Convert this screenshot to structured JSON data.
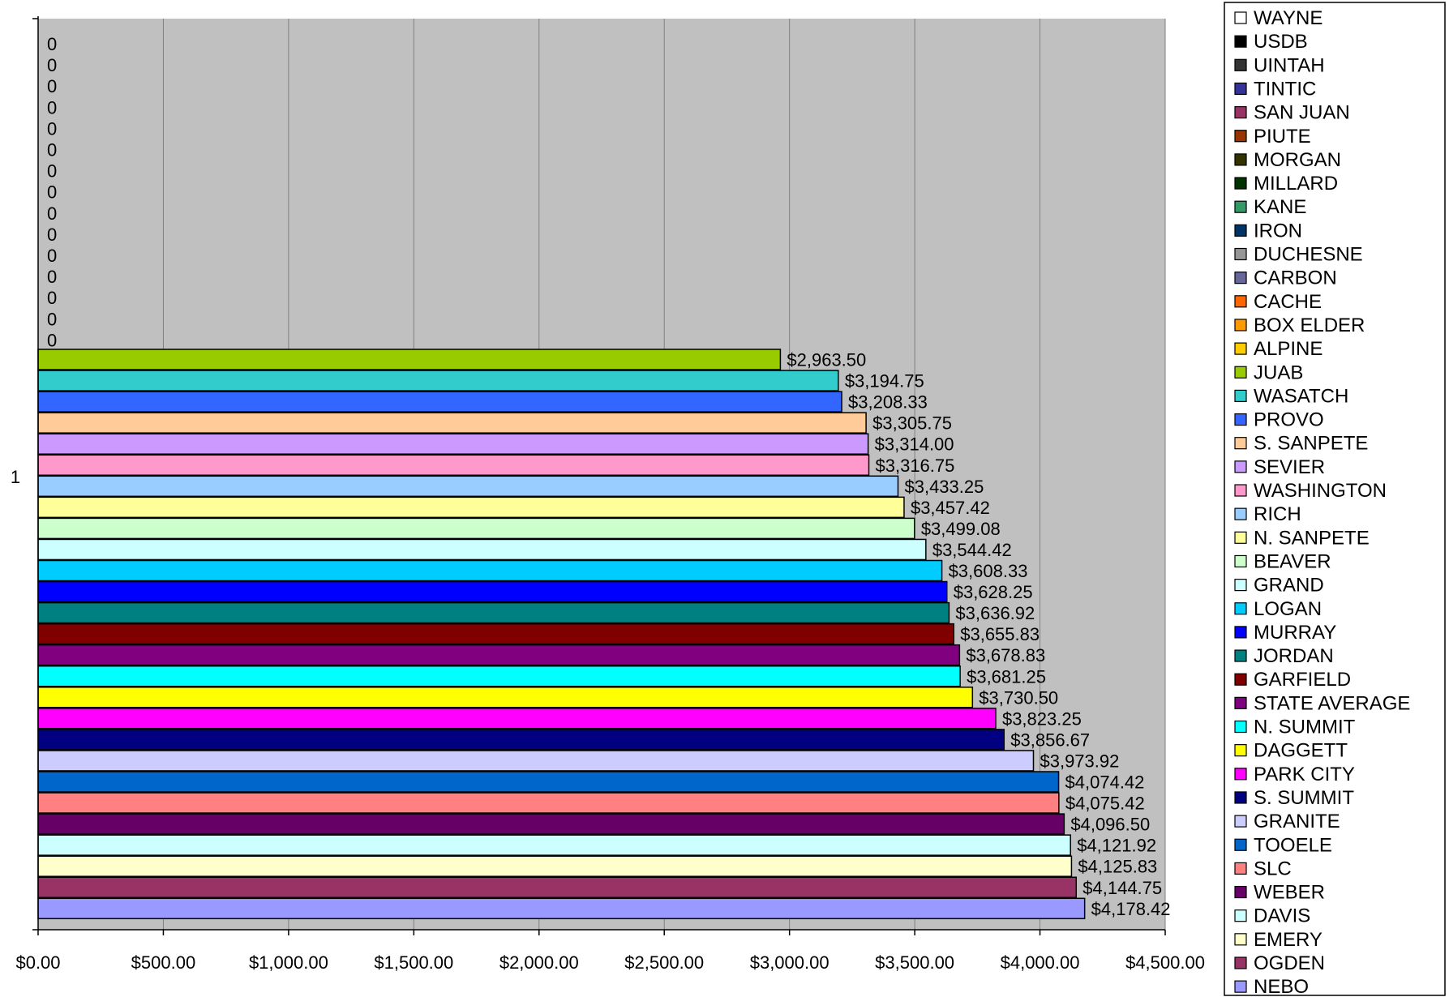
{
  "chart_data": {
    "type": "bar",
    "orientation": "horizontal",
    "title": "",
    "xlabel": "",
    "ylabel": "",
    "xlim": [
      0,
      4500
    ],
    "x_ticks": [
      "$0.00",
      "$500.00",
      "$1,000.00",
      "$1,500.00",
      "$2,000.00",
      "$2,500.00",
      "$3,000.00",
      "$3,500.00",
      "$4,000.00",
      "$4,500.00"
    ],
    "y_category_label": "1",
    "grid": true,
    "legend_position": "right",
    "series": [
      {
        "name": "WAYNE",
        "value": 0,
        "label": "0",
        "color": "#ffffff"
      },
      {
        "name": "USDB",
        "value": 0,
        "label": "0",
        "color": "#000000"
      },
      {
        "name": "UINTAH",
        "value": 0,
        "label": "0",
        "color": "#333333"
      },
      {
        "name": "TINTIC",
        "value": 0,
        "label": "0",
        "color": "#333399"
      },
      {
        "name": "SAN JUAN",
        "value": 0,
        "label": "0",
        "color": "#993366"
      },
      {
        "name": "PIUTE",
        "value": 0,
        "label": "0",
        "color": "#993300"
      },
      {
        "name": "MORGAN",
        "value": 0,
        "label": "0",
        "color": "#333300"
      },
      {
        "name": "MILLARD",
        "value": 0,
        "label": "0",
        "color": "#003300"
      },
      {
        "name": "KANE",
        "value": 0,
        "label": "0",
        "color": "#339966"
      },
      {
        "name": "IRON",
        "value": 0,
        "label": "0",
        "color": "#003366"
      },
      {
        "name": "DUCHESNE",
        "value": 0,
        "label": "0",
        "color": "#969696"
      },
      {
        "name": "CARBON",
        "value": 0,
        "label": "0",
        "color": "#666699"
      },
      {
        "name": "CACHE",
        "value": 0,
        "label": "0",
        "color": "#ff6600"
      },
      {
        "name": "BOX ELDER",
        "value": 0,
        "label": "0",
        "color": "#ff9900"
      },
      {
        "name": "ALPINE",
        "value": 0,
        "label": "0",
        "color": "#ffcc00"
      },
      {
        "name": "JUAB",
        "value": 2963.5,
        "label": "$2,963.50",
        "color": "#99cc00"
      },
      {
        "name": "WASATCH",
        "value": 3194.75,
        "label": "$3,194.75",
        "color": "#33cccc"
      },
      {
        "name": "PROVO",
        "value": 3208.33,
        "label": "$3,208.33",
        "color": "#3366ff"
      },
      {
        "name": "S. SANPETE",
        "value": 3305.75,
        "label": "$3,305.75",
        "color": "#ffcc99"
      },
      {
        "name": "SEVIER",
        "value": 3314.0,
        "label": "$3,314.00",
        "color": "#cc99ff"
      },
      {
        "name": "WASHINGTON",
        "value": 3316.75,
        "label": "$3,316.75",
        "color": "#ff99cc"
      },
      {
        "name": "RICH",
        "value": 3433.25,
        "label": "$3,433.25",
        "color": "#99ccff"
      },
      {
        "name": "N. SANPETE",
        "value": 3457.42,
        "label": "$3,457.42",
        "color": "#ffff99"
      },
      {
        "name": "BEAVER",
        "value": 3499.08,
        "label": "$3,499.08",
        "color": "#ccffcc"
      },
      {
        "name": "GRAND",
        "value": 3544.42,
        "label": "$3,544.42",
        "color": "#ccffff"
      },
      {
        "name": "LOGAN",
        "value": 3608.33,
        "label": "$3,608.33",
        "color": "#00ccff"
      },
      {
        "name": "MURRAY",
        "value": 3628.25,
        "label": "$3,628.25",
        "color": "#0000ff"
      },
      {
        "name": "JORDAN",
        "value": 3636.92,
        "label": "$3,636.92",
        "color": "#008080"
      },
      {
        "name": "GARFIELD",
        "value": 3655.83,
        "label": "$3,655.83",
        "color": "#800000"
      },
      {
        "name": "STATE AVERAGE",
        "value": 3678.83,
        "label": "$3,678.83",
        "color": "#800080"
      },
      {
        "name": "N. SUMMIT",
        "value": 3681.25,
        "label": "$3,681.25",
        "color": "#00ffff"
      },
      {
        "name": "DAGGETT",
        "value": 3730.5,
        "label": "$3,730.50",
        "color": "#ffff00"
      },
      {
        "name": "PARK CITY",
        "value": 3823.25,
        "label": "$3,823.25",
        "color": "#ff00ff"
      },
      {
        "name": "S. SUMMIT",
        "value": 3856.67,
        "label": "$3,856.67",
        "color": "#000080"
      },
      {
        "name": "GRANITE",
        "value": 3973.92,
        "label": "$3,973.92",
        "color": "#ccccff"
      },
      {
        "name": "TOOELE",
        "value": 4074.42,
        "label": "$4,074.42",
        "color": "#0066cc"
      },
      {
        "name": "SLC",
        "value": 4075.42,
        "label": "$4,075.42",
        "color": "#ff8080"
      },
      {
        "name": "WEBER",
        "value": 4096.5,
        "label": "$4,096.50",
        "color": "#660066"
      },
      {
        "name": "DAVIS",
        "value": 4121.92,
        "label": "$4,121.92",
        "color": "#ccffff"
      },
      {
        "name": "EMERY",
        "value": 4125.83,
        "label": "$4,125.83",
        "color": "#ffffcc"
      },
      {
        "name": "OGDEN",
        "value": 4144.75,
        "label": "$4,144.75",
        "color": "#993366"
      },
      {
        "name": "NEBO",
        "value": 4178.42,
        "label": "$4,178.42",
        "color": "#9999ff"
      }
    ]
  },
  "colors": {
    "plot_background": "#c0c0c0",
    "gridline": "#808080",
    "axis": "#000000"
  }
}
